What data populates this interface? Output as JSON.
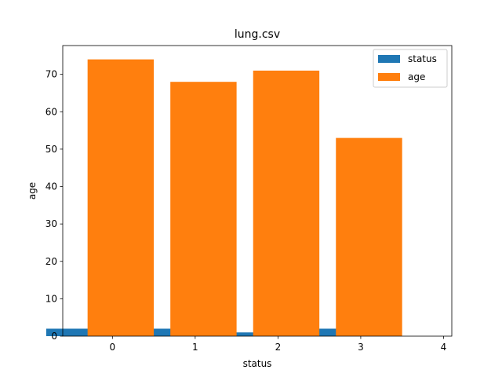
{
  "chart_data": {
    "type": "bar",
    "title": "lung.csv",
    "xlabel": "status",
    "ylabel": "age",
    "x": [
      0,
      1,
      2,
      3
    ],
    "series": [
      {
        "name": "status",
        "color": "#1f77b4",
        "values": [
          2,
          2,
          1,
          2
        ]
      },
      {
        "name": "age",
        "color": "#ff7f0e",
        "values": [
          74,
          68,
          71,
          53
        ]
      }
    ],
    "xticks": [
      0,
      1,
      2,
      3,
      4
    ],
    "yticks": [
      0,
      10,
      20,
      30,
      40,
      50,
      60,
      70
    ],
    "xlim": [
      -0.6,
      4.1
    ],
    "ylim": [
      0,
      77.7
    ],
    "grid": false,
    "legend": "top-right"
  }
}
